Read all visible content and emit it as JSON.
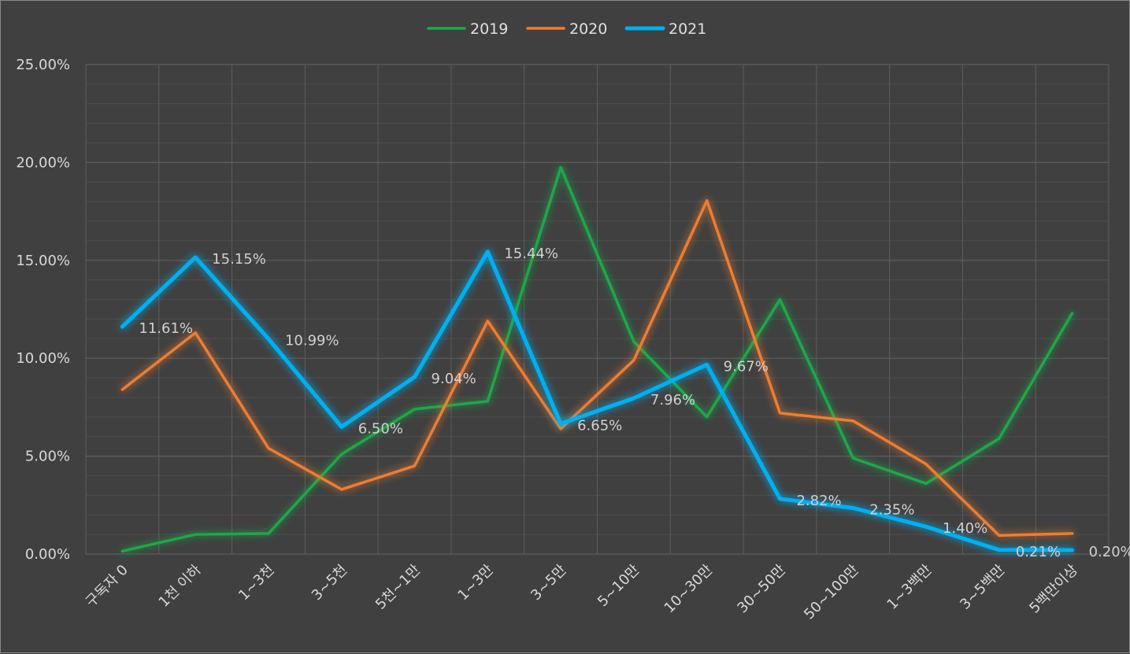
{
  "chart_data": {
    "type": "line",
    "title": "",
    "xlabel": "",
    "ylabel": "",
    "ylim": [
      0,
      25
    ],
    "y_tick_labels": [
      "0.00%",
      "5.00%",
      "10.00%",
      "15.00%",
      "20.00%",
      "25.00%"
    ],
    "grid": true,
    "legend_position": "top",
    "categories": [
      "구독자 0",
      "1천 이하",
      "1~3천",
      "3~5천",
      "5천~1만",
      "1~3만",
      "3~5만",
      "5~10만",
      "10~30만",
      "30~50만",
      "50~100만",
      "1~3백만",
      "3~5백만",
      "5백만이상"
    ],
    "series": [
      {
        "name": "2019",
        "color": "#1fa84a",
        "values": [
          0.15,
          1.0,
          1.05,
          5.1,
          7.4,
          7.8,
          19.75,
          10.85,
          7.0,
          13.0,
          4.9,
          3.6,
          5.9,
          12.3
        ]
      },
      {
        "name": "2020",
        "color": "#ed7d31",
        "values": [
          8.4,
          11.3,
          5.4,
          3.3,
          4.5,
          11.9,
          6.4,
          9.9,
          18.05,
          7.2,
          6.8,
          4.6,
          0.95,
          1.05
        ]
      },
      {
        "name": "2021",
        "color": "#00b0f0",
        "values": [
          11.61,
          15.15,
          10.99,
          6.5,
          9.04,
          15.44,
          6.65,
          7.96,
          9.67,
          2.82,
          2.35,
          1.4,
          0.21,
          0.2
        ],
        "labels": [
          "11.61%",
          "15.15%",
          "10.99%",
          "6.50%",
          "9.04%",
          "15.44%",
          "6.65%",
          "7.96%",
          "9.67%",
          "2.82%",
          "2.35%",
          "1.40%",
          "0.21%",
          "0.20%"
        ]
      }
    ]
  }
}
